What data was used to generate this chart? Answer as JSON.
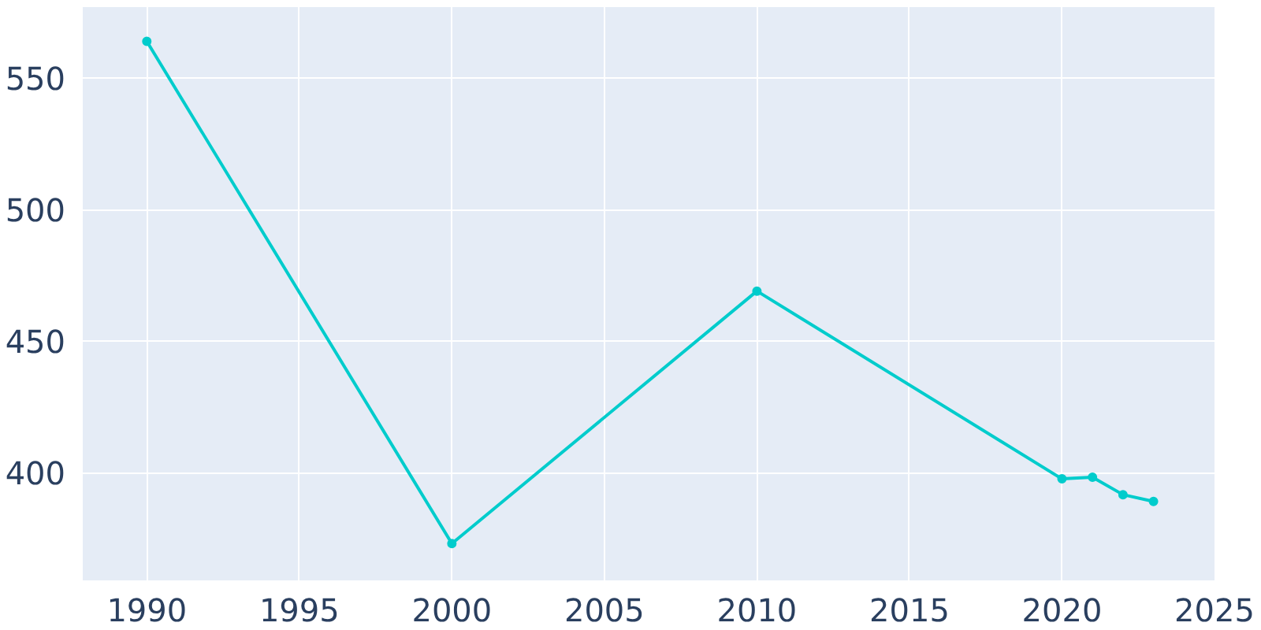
{
  "chart_data": {
    "type": "line",
    "x": [
      1990,
      2000,
      2010,
      2020,
      2021,
      2022,
      2023
    ],
    "series": [
      {
        "color": "#00cccc",
        "values": [
          564,
          373,
          469,
          397.6,
          398.2,
          391.6,
          389
        ]
      }
    ],
    "xlim": [
      1987.9,
      2025
    ],
    "ylim": [
      359,
      577
    ],
    "xticks": [
      1990,
      1995,
      2000,
      2005,
      2010,
      2015,
      2020,
      2025
    ],
    "yticks": [
      400,
      450,
      500,
      550
    ],
    "grid": true,
    "marker": "circle",
    "line_style": "solid"
  }
}
